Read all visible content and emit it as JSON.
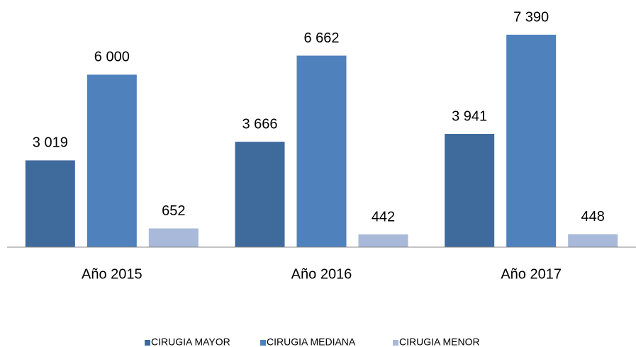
{
  "chart_data": {
    "type": "bar",
    "categories": [
      "Año 2015",
      "Año 2016",
      "Año 2017"
    ],
    "series": [
      {
        "name": "CIRUGIA MAYOR",
        "color": "#3f6a9c",
        "values": [
          3019,
          3666,
          3941
        ],
        "value_labels": [
          "3 019",
          "3 666",
          "3 941"
        ]
      },
      {
        "name": "CIRUGIA MEDIANA",
        "color": "#4f81bd",
        "values": [
          6000,
          6662,
          7390
        ],
        "value_labels": [
          "6 000",
          "6 662",
          "7 390"
        ]
      },
      {
        "name": "CIRUGIA MENOR",
        "color": "#a9b9d9",
        "values": [
          652,
          442,
          448
        ]
      }
    ]
  }
}
